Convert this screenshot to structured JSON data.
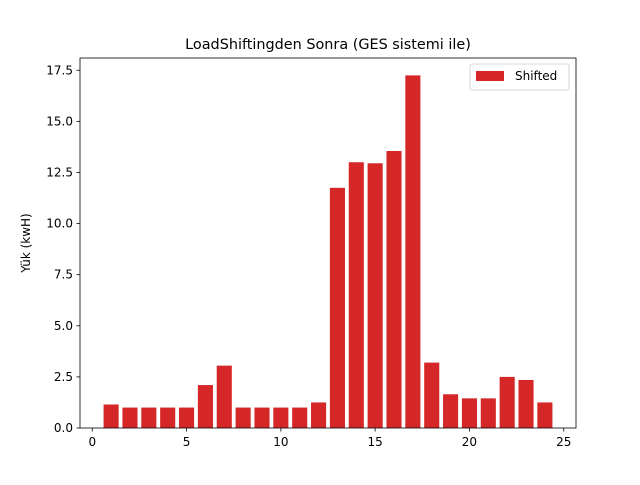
{
  "chart_data": {
    "type": "bar",
    "title": "LoadShiftingden Sonra (GES sistemi ile)",
    "xlabel": "",
    "ylabel": "Yük (kwH)",
    "x": [
      1,
      2,
      3,
      4,
      5,
      6,
      7,
      8,
      9,
      10,
      11,
      12,
      13,
      14,
      15,
      16,
      17,
      18,
      19,
      20,
      21,
      22,
      23,
      24
    ],
    "series": [
      {
        "name": "Shifted",
        "color": "#d62728",
        "values": [
          1.15,
          1.0,
          1.0,
          1.0,
          1.0,
          2.1,
          3.05,
          1.0,
          1.0,
          1.0,
          1.0,
          1.25,
          11.75,
          13.0,
          12.95,
          13.55,
          17.25,
          3.2,
          1.65,
          1.45,
          1.45,
          2.5,
          2.35,
          1.25
        ]
      }
    ],
    "xlim": [
      -0.65,
      25.65
    ],
    "ylim": [
      0,
      18.1
    ],
    "xticks": [
      0,
      5,
      10,
      15,
      20,
      25
    ],
    "xtick_labels": [
      "0",
      "5",
      "10",
      "15",
      "20",
      "25"
    ],
    "yticks": [
      0,
      2.5,
      5,
      7.5,
      10,
      12.5,
      15,
      17.5
    ],
    "ytick_labels": [
      "0.0",
      "2.5",
      "5.0",
      "7.5",
      "10.0",
      "12.5",
      "15.0",
      "17.5"
    ],
    "legend_position": "top-right",
    "grid": false
  }
}
